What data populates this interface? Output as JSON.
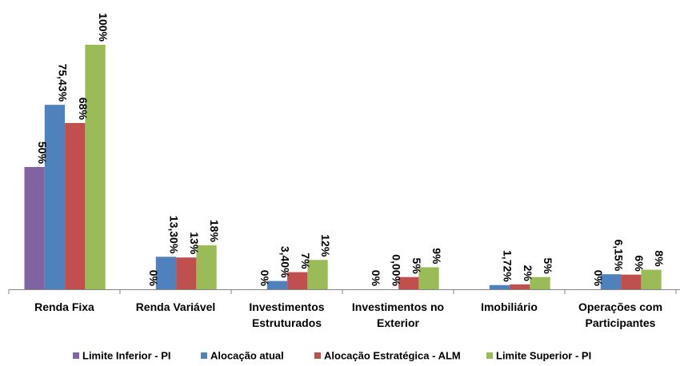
{
  "chart_data": {
    "type": "bar",
    "categories": [
      [
        "Renda Fixa"
      ],
      [
        "Renda Variável"
      ],
      [
        "Investimentos",
        "Estruturados"
      ],
      [
        "Investimentos no",
        "Exterior"
      ],
      [
        "Imobiliário"
      ],
      [
        "Operações com",
        "Participantes"
      ]
    ],
    "series": [
      {
        "name": "Limite Inferior - PI",
        "color": "#8064A2",
        "values": [
          50,
          0,
          0,
          0,
          0,
          0
        ],
        "labels": [
          "50%",
          "0%",
          "0%",
          "0%",
          "",
          "0%"
        ]
      },
      {
        "name": "Alocação atual",
        "color": "#4F81BD",
        "values": [
          75.43,
          13.3,
          3.4,
          0,
          1.72,
          6.15
        ],
        "labels": [
          "75,43%",
          "13,30%",
          "3,40%",
          "0,00%",
          "1,72%",
          "6,15%"
        ]
      },
      {
        "name": "Alocação Estratégica - ALM",
        "color": "#C0504D",
        "values": [
          68,
          13,
          7,
          5,
          2,
          6
        ],
        "labels": [
          "68%",
          "13%",
          "7%",
          "5%",
          "2%",
          "6%"
        ]
      },
      {
        "name": "Limite Superior - PI",
        "color": "#9BBB59",
        "values": [
          100,
          18,
          12,
          9,
          5,
          8
        ],
        "labels": [
          "100%",
          "18%",
          "12%",
          "9%",
          "5%",
          "8%"
        ]
      }
    ],
    "ylim": [
      0,
      100
    ],
    "grid": false,
    "legend_position": "bottom"
  }
}
